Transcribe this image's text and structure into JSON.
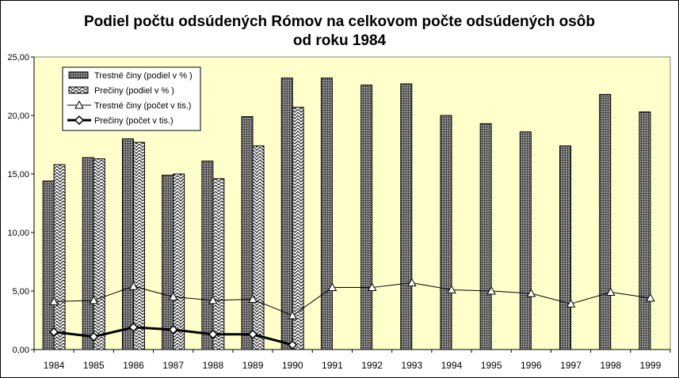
{
  "chart_data": {
    "type": "bar",
    "title_line1": "Podiel počtu odsúdených Rómov na celkovom počte odsúdených osôb",
    "title_line2": "od roku 1984",
    "categories": [
      "1984",
      "1985",
      "1986",
      "1987",
      "1988",
      "1989",
      "1990",
      "1991",
      "1992",
      "1993",
      "1994",
      "1995",
      "1996",
      "1997",
      "1998",
      "1999"
    ],
    "y_tick_labels": [
      "0,00",
      "5,00",
      "10,00",
      "15,00",
      "20,00",
      "25,00"
    ],
    "ylim": [
      0,
      25
    ],
    "plot_background": "#ffffcc",
    "legend_position": "top-left",
    "series": [
      {
        "name": "Trestné činy (podiel v % )",
        "kind": "bar",
        "pattern": "dots",
        "values": [
          14.4,
          16.4,
          18.0,
          14.9,
          16.1,
          19.9,
          23.2,
          23.2,
          22.6,
          22.7,
          20.0,
          19.3,
          18.6,
          17.4,
          21.8,
          20.3
        ]
      },
      {
        "name": "Prečiny (podiel v % )",
        "kind": "bar",
        "pattern": "zigzag",
        "values": [
          15.8,
          16.3,
          17.7,
          15.0,
          14.6,
          17.4,
          20.7,
          null,
          null,
          null,
          null,
          null,
          null,
          null,
          null,
          null
        ]
      },
      {
        "name": "Trestné činy (počet v tis.)",
        "kind": "line",
        "marker": "triangle",
        "values": [
          4.1,
          4.2,
          5.4,
          4.5,
          4.2,
          4.3,
          2.9,
          5.3,
          5.3,
          5.7,
          5.1,
          5.0,
          4.8,
          3.9,
          4.9,
          4.4
        ]
      },
      {
        "name": "Prečiny (počet v tis.)",
        "kind": "line",
        "marker": "diamond",
        "values": [
          1.5,
          1.1,
          1.9,
          1.7,
          1.3,
          1.3,
          0.4,
          null,
          null,
          null,
          null,
          null,
          null,
          null,
          null,
          null
        ]
      }
    ]
  }
}
